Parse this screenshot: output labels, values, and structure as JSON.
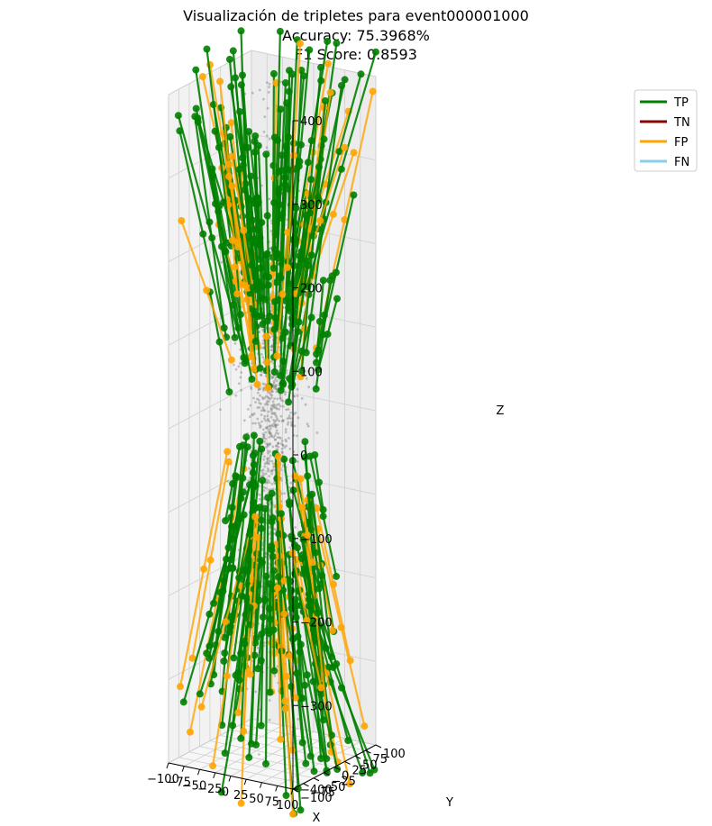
{
  "chart_data": {
    "type": "scatter",
    "projection": "3d",
    "title_lines": [
      "Visualización de tripletes para event000001000",
      "Accuracy: 75.3968%",
      "F1 Score: 0.8593"
    ],
    "xlabel": "X",
    "ylabel": "Y",
    "zlabel": "Z",
    "xlim": [
      -100,
      100
    ],
    "ylim": [
      -100,
      100
    ],
    "zlim": [
      -400,
      400
    ],
    "x_ticks": [
      -100,
      -75,
      -50,
      -25,
      0,
      25,
      50,
      75,
      100
    ],
    "y_ticks": [
      -100,
      -75,
      -50,
      -25,
      0,
      25,
      50,
      75,
      100
    ],
    "z_ticks": [
      -400,
      -300,
      -200,
      -100,
      0,
      100,
      200,
      300,
      400
    ],
    "x_tick_labels": [
      "−100",
      "−75",
      "−50",
      "−25",
      "0",
      "25",
      "50",
      "75",
      "100"
    ],
    "y_tick_labels": [
      "−100",
      "−75",
      "−50",
      "−25",
      "0",
      "25",
      "50",
      "75",
      "100"
    ],
    "z_tick_labels": [
      "−400",
      "−300",
      "−200",
      "−100",
      "0",
      "100",
      "200",
      "300",
      "400"
    ],
    "grid": true,
    "legend_position": "upper-right-outside",
    "series": [
      {
        "name": "TP",
        "color": "#008000"
      },
      {
        "name": "TN",
        "color": "#8b0000"
      },
      {
        "name": "FP",
        "color": "#ffa500"
      },
      {
        "name": "FN",
        "color": "#87ceeb"
      }
    ],
    "hits_color": "#808080",
    "n_hits": 1200,
    "tracks_estimated": {
      "TP": 190,
      "FP": 60,
      "TN": 0,
      "FN": 0
    }
  }
}
